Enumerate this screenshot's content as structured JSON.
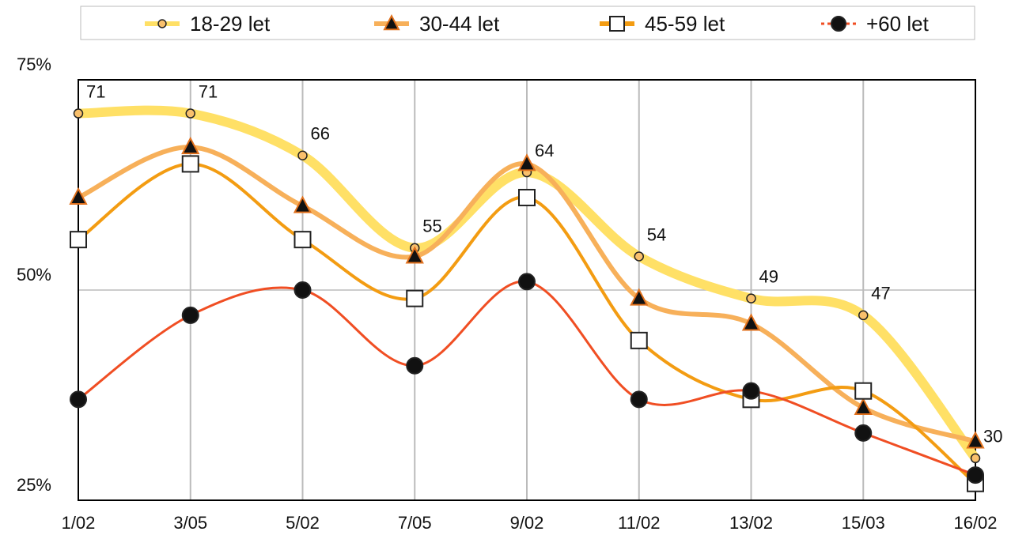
{
  "chart_data": {
    "type": "line",
    "categories": [
      "1/02",
      "3/05",
      "5/02",
      "7/05",
      "9/02",
      "11/02",
      "13/02",
      "15/03",
      "16/02"
    ],
    "series": [
      {
        "name": "18-29 let",
        "color": "#ffe066",
        "marker": "circle",
        "marker_color": "#f9c06c",
        "values": [
          71,
          71,
          66,
          55,
          64,
          54,
          49,
          47,
          30
        ]
      },
      {
        "name": "30-44 let",
        "color": "#f7b05a",
        "marker": "triangle",
        "marker_color": "#111111",
        "values": [
          61,
          67,
          60,
          54,
          65,
          49,
          46,
          36,
          32
        ]
      },
      {
        "name": "45-59 let",
        "color": "#f39c12",
        "marker": "square",
        "marker_color": "#ffffff",
        "values": [
          56,
          65,
          56,
          49,
          61,
          44,
          37,
          38,
          27
        ]
      },
      {
        "name": "+60 let",
        "color": "#f04e23",
        "marker": "dot",
        "marker_color": "#111111",
        "values": [
          37,
          47,
          50,
          41,
          51,
          37,
          38,
          33,
          28
        ]
      }
    ],
    "ylim": [
      25,
      75
    ],
    "yticks": [
      {
        "value": 25,
        "label": "25%"
      },
      {
        "value": 50,
        "label": "50%"
      },
      {
        "value": 75,
        "label": "75%"
      }
    ],
    "grid": true,
    "legend": "top"
  }
}
